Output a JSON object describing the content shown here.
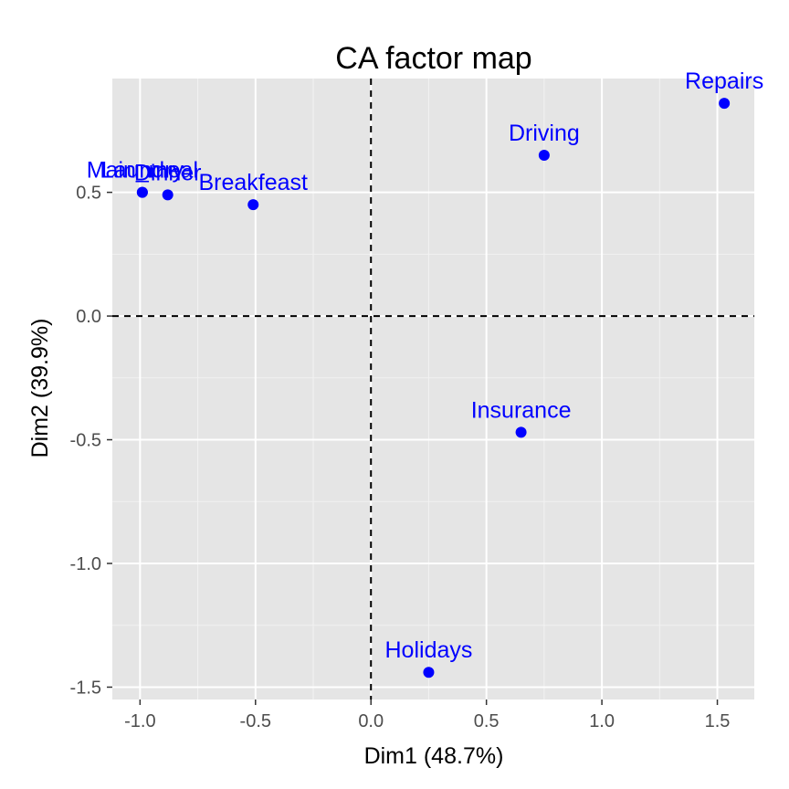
{
  "chart_data": {
    "type": "scatter",
    "title": "CA factor map",
    "xlabel": "Dim1 (48.7%)",
    "ylabel": "Dim2 (39.9%)",
    "xlim": [
      -1.12,
      1.66
    ],
    "ylim": [
      -1.55,
      0.96
    ],
    "x_ticks": [
      -1.0,
      -0.5,
      0.0,
      0.5,
      1.0,
      1.5
    ],
    "x_tick_labels": [
      "-1.0",
      "-0.5",
      "0.0",
      "0.5",
      "1.0",
      "1.5"
    ],
    "y_ticks": [
      -1.5,
      -1.0,
      -0.5,
      0.0,
      0.5
    ],
    "y_tick_labels": [
      "-1.5",
      "-1.0",
      "-0.5",
      "0.0",
      "0.5"
    ],
    "grid": true,
    "reference_lines": {
      "x": 0,
      "y": 0,
      "style": "dashed"
    },
    "point_color": "#0000ff",
    "panel_color": "#e5e5e5",
    "points": [
      {
        "label": "Laundry",
        "x": -0.99,
        "y": 0.5
      },
      {
        "label": "Main_meal",
        "x": -0.99,
        "y": 0.5
      },
      {
        "label": "Dinner",
        "x": -0.88,
        "y": 0.49
      },
      {
        "label": "Breakfeast",
        "x": -0.51,
        "y": 0.45
      },
      {
        "label": "Driving",
        "x": 0.75,
        "y": 0.65
      },
      {
        "label": "Repairs",
        "x": 1.53,
        "y": 0.86
      },
      {
        "label": "Insurance",
        "x": 0.65,
        "y": -0.47
      },
      {
        "label": "Holidays",
        "x": 0.25,
        "y": -1.44
      }
    ]
  }
}
